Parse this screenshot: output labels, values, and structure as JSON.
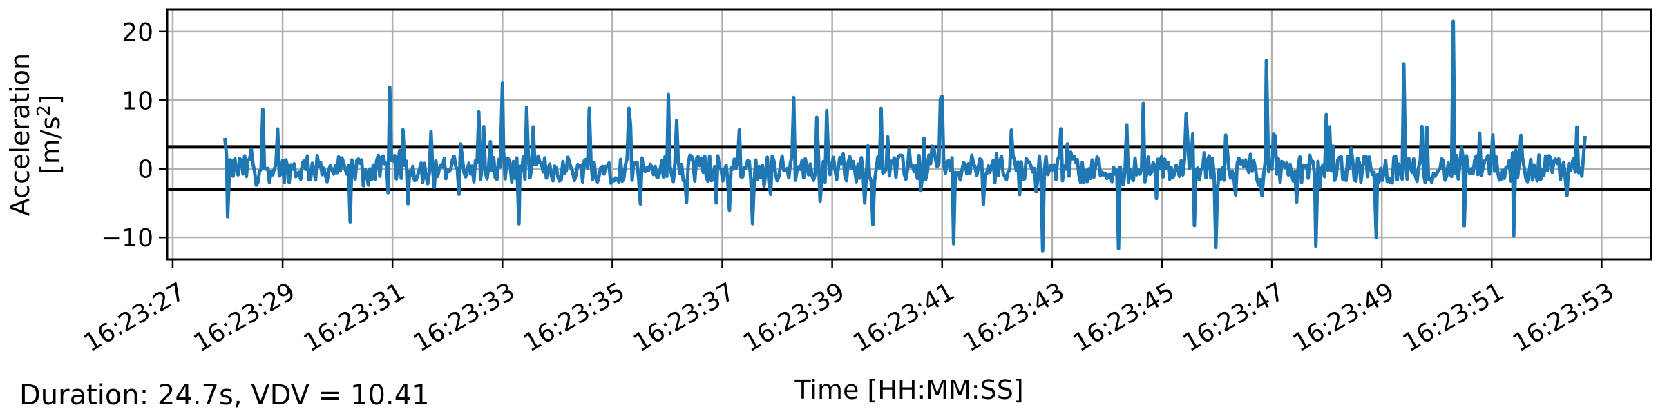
{
  "footer": {
    "summary": "Duration: 24.7s, VDV = 10.41"
  },
  "chart_data": {
    "type": "line",
    "xlabel": "Time [HH:MM:SS]",
    "ylabel_line1": "Acceleration",
    "ylabel_line2_pre": "[m/s",
    "ylabel_line2_sup": "2",
    "ylabel_line2_post": "]",
    "x_start": "16:23:27",
    "xlim_seconds": [
      -0.1,
      26.9
    ],
    "ylim": [
      -13.2,
      23.2
    ],
    "x_ticks": [
      {
        "t": 0,
        "label": "16:23:27"
      },
      {
        "t": 2,
        "label": "16:23:29"
      },
      {
        "t": 4,
        "label": "16:23:31"
      },
      {
        "t": 6,
        "label": "16:23:33"
      },
      {
        "t": 8,
        "label": "16:23:35"
      },
      {
        "t": 10,
        "label": "16:23:37"
      },
      {
        "t": 12,
        "label": "16:23:39"
      },
      {
        "t": 14,
        "label": "16:23:41"
      },
      {
        "t": 16,
        "label": "16:23:43"
      },
      {
        "t": 18,
        "label": "16:23:45"
      },
      {
        "t": 20,
        "label": "16:23:47"
      },
      {
        "t": 22,
        "label": "16:23:49"
      },
      {
        "t": 24,
        "label": "16:23:51"
      },
      {
        "t": 26,
        "label": "16:23:53"
      }
    ],
    "y_ticks": [
      {
        "v": 20,
        "label": "20"
      },
      {
        "v": 10,
        "label": "10"
      },
      {
        "v": 0,
        "label": "0"
      },
      {
        "v": -10,
        "label": "−10"
      }
    ],
    "thresholds": [
      3.2,
      -3.0
    ],
    "threshold_color": "#000000",
    "grid": true,
    "series": [
      {
        "color": "#1f77b4",
        "t_start": 0.95,
        "t_end": 25.7,
        "notable_points": [
          {
            "t": 0.95,
            "v": 4.5
          },
          {
            "t": 1.0,
            "v": -7.0
          },
          {
            "t": 6.0,
            "v": 12.5
          },
          {
            "t": 6.3,
            "v": -8.0
          },
          {
            "t": 11.3,
            "v": 10.4
          },
          {
            "t": 14.0,
            "v": 10.6
          },
          {
            "t": 19.9,
            "v": 15.8
          },
          {
            "t": 20.8,
            "v": 15.8
          },
          {
            "t": 20.8,
            "v": -11.3
          },
          {
            "t": 21.9,
            "v": -10.0
          },
          {
            "t": 22.4,
            "v": 15.3
          },
          {
            "t": 23.3,
            "v": 21.5
          },
          {
            "t": 23.5,
            "v": -8.3
          },
          {
            "t": 24.4,
            "v": -9.8
          },
          {
            "t": 25.7,
            "v": 4.8
          }
        ],
        "typical_amplitude": 6.0
      }
    ]
  }
}
